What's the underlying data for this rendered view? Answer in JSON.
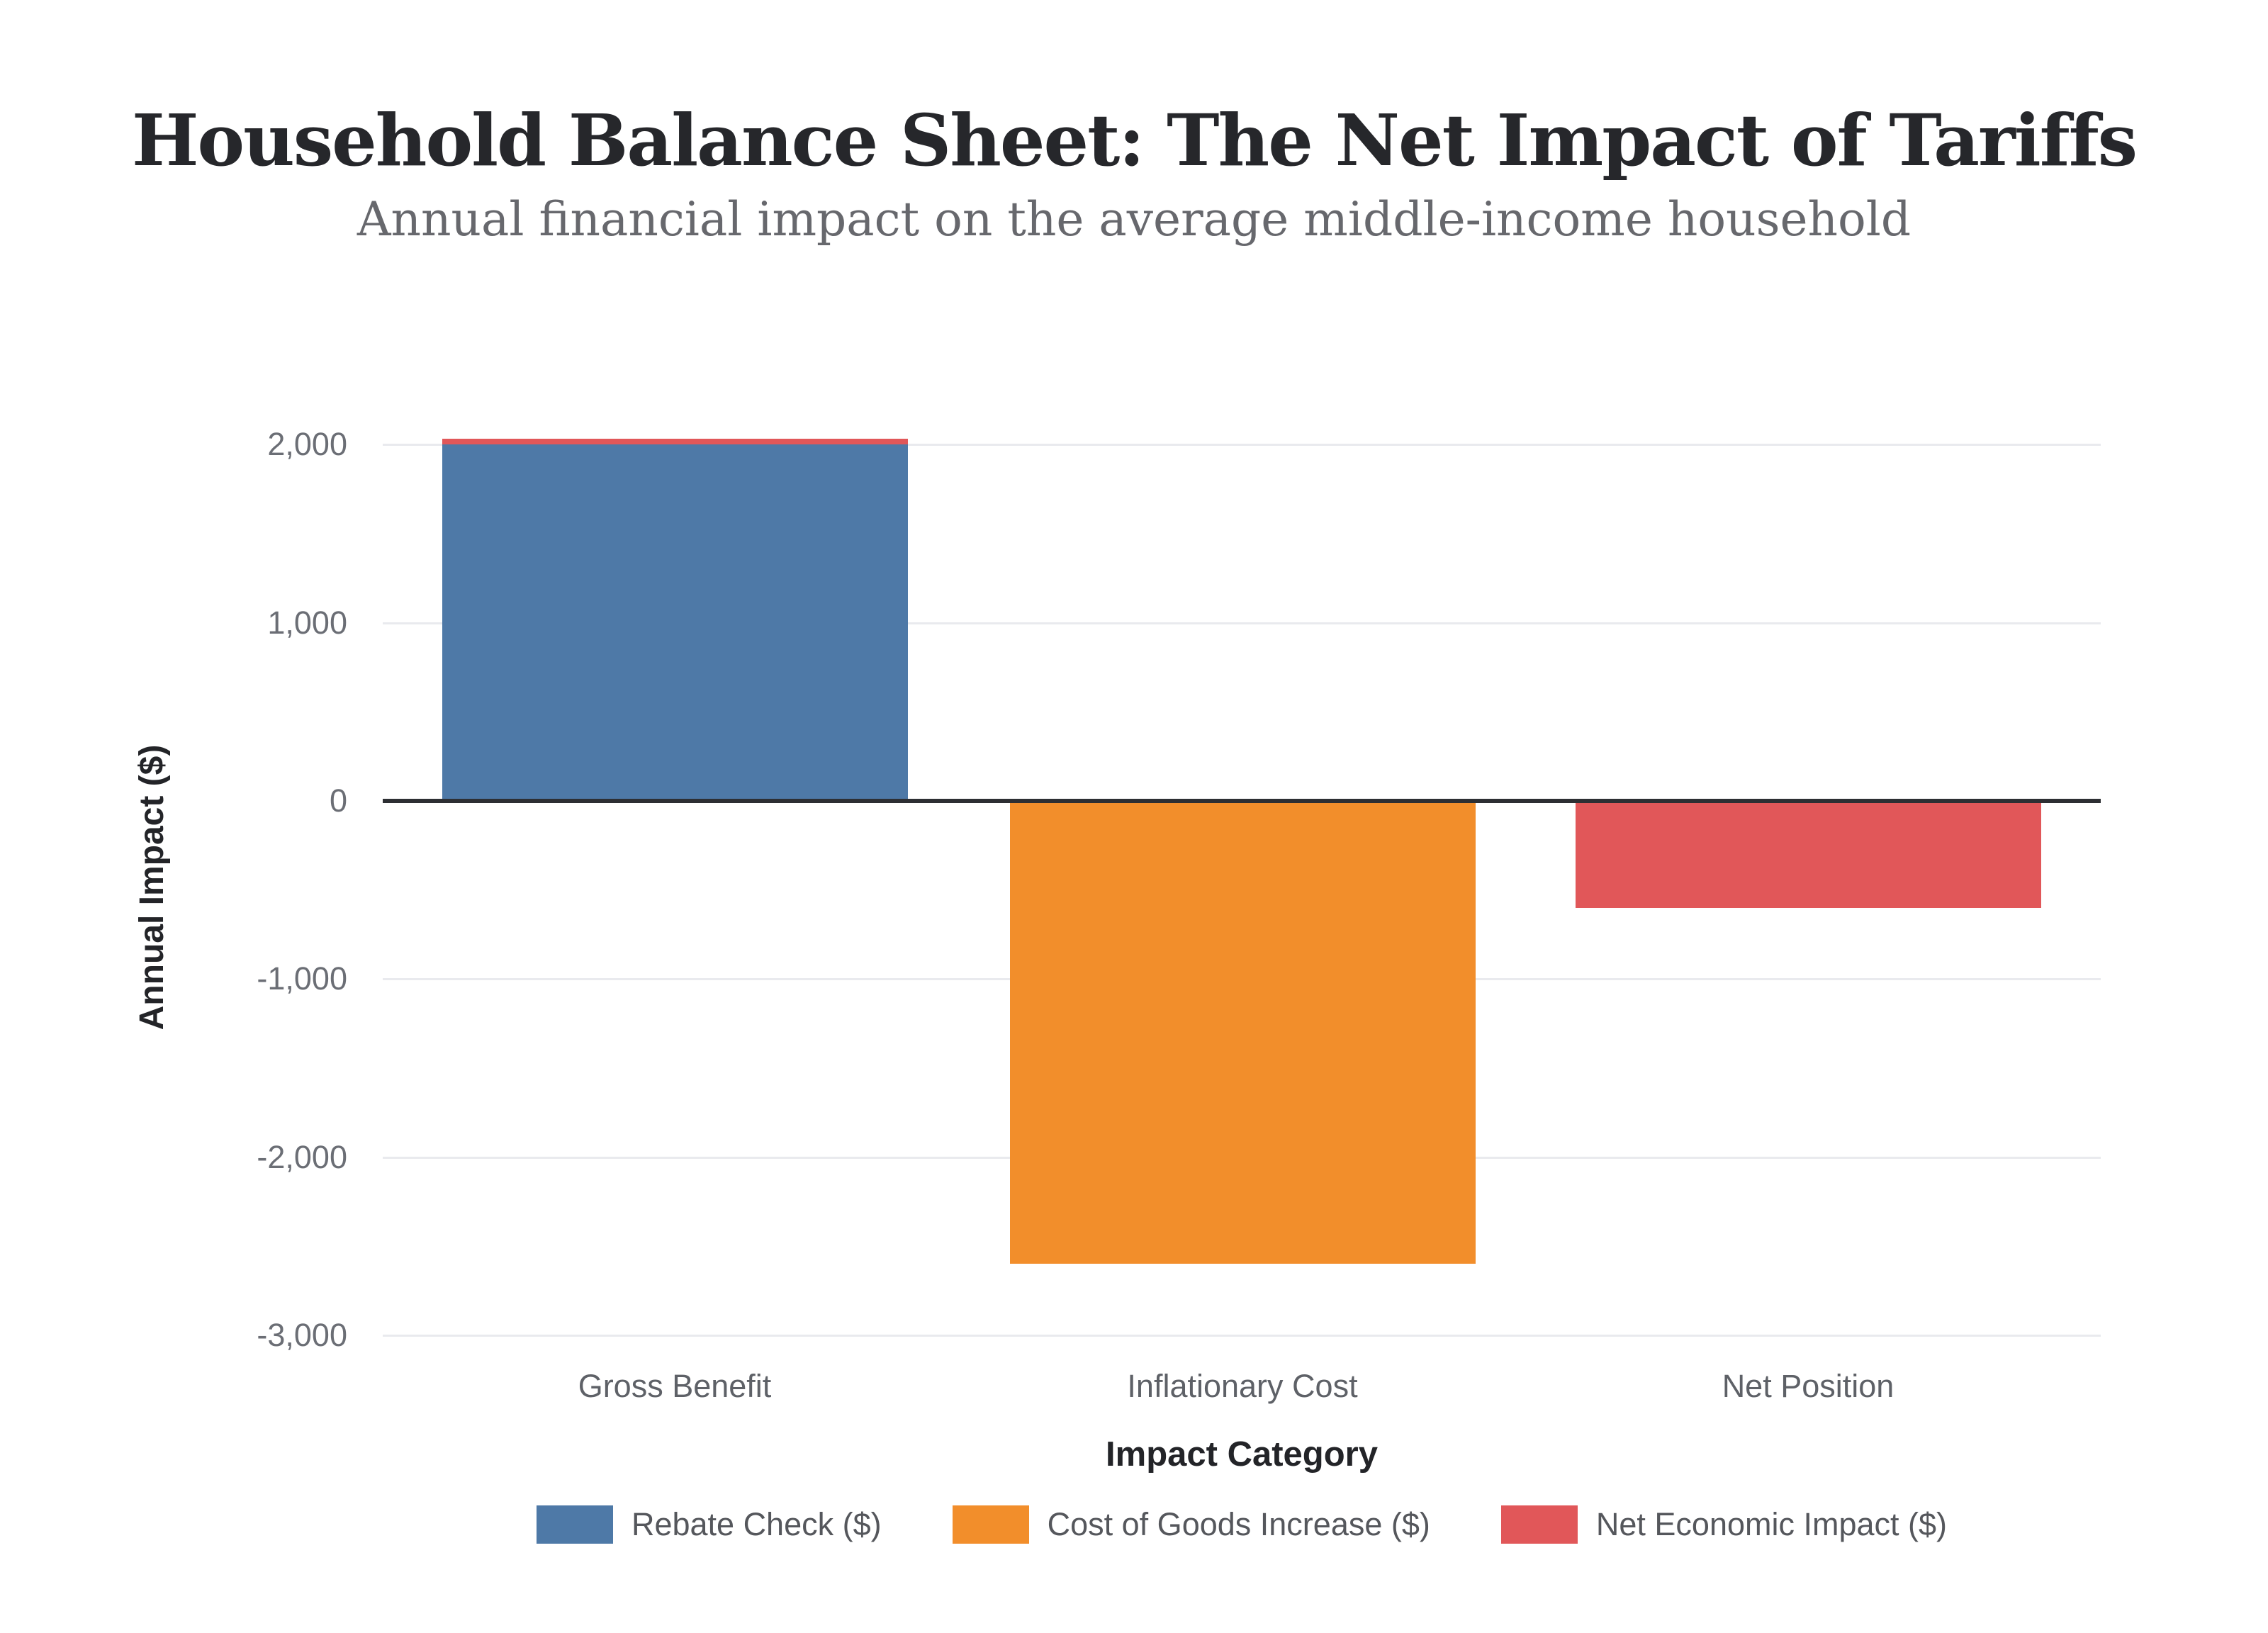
{
  "chart_data": {
    "type": "bar",
    "title": "Household Balance Sheet: The Net Impact of Tariffs",
    "subtitle": "Annual financial impact on the average middle-income household",
    "xlabel": "Impact Category",
    "ylabel": "Annual Impact ($)",
    "categories": [
      "Gross Benefit",
      "Inflationary Cost",
      "Net Position"
    ],
    "bars": [
      {
        "category": "Gross Benefit",
        "value": 2000,
        "color": "#4e79a7",
        "top_accent_color": "#e15759"
      },
      {
        "category": "Inflationary Cost",
        "value": -2600,
        "color": "#f28e2b"
      },
      {
        "category": "Net Position",
        "value": -600,
        "color": "#e15759"
      }
    ],
    "yticks": [
      {
        "value": 2000,
        "label": "2,000"
      },
      {
        "value": 1000,
        "label": "1,000"
      },
      {
        "value": 0,
        "label": "0"
      },
      {
        "value": -1000,
        "label": "-1,000"
      },
      {
        "value": -2000,
        "label": "-2,000"
      },
      {
        "value": -3000,
        "label": "-3,000"
      }
    ],
    "ylim": [
      -3000,
      2000
    ],
    "grid": "horizontal",
    "zero_line": true,
    "legend_position": "bottom",
    "legend": [
      {
        "label": "Rebate Check ($)",
        "color": "#4e79a7"
      },
      {
        "label": "Cost of Goods Increase ($)",
        "color": "#f28e2b"
      },
      {
        "label": "Net Economic Impact ($)",
        "color": "#e15759"
      }
    ]
  },
  "colors": {
    "background": "#ffffff",
    "grid": "#e9eaee",
    "zero_line": "#2d2f33",
    "title": "#26272b",
    "subtitle": "#67686d",
    "tick_label": "#6b6e75",
    "axis_title": "#232428",
    "legend_text": "#55575c",
    "bar_blue": "#4e79a7",
    "bar_orange": "#f28e2b",
    "bar_red": "#e15759"
  }
}
